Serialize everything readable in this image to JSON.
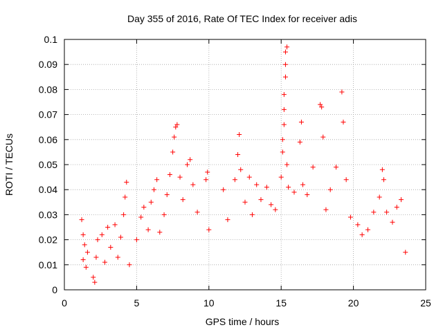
{
  "chart_data": {
    "type": "scatter",
    "title": "Day 355 of 2016, Rate Of TEC Index for receiver adis",
    "xlabel": "GPS time / hours",
    "ylabel": "ROTI / TECUs",
    "xlim": [
      0,
      25
    ],
    "ylim": [
      0,
      0.1
    ],
    "xticks": [
      "0",
      "5",
      "10",
      "15",
      "20",
      "25"
    ],
    "yticks": [
      "0",
      "0.01",
      "0.02",
      "0.03",
      "0.04",
      "0.05",
      "0.06",
      "0.07",
      "0.08",
      "0.09",
      "0.1"
    ],
    "grid": true,
    "marker": "plus",
    "color": "#ff0000",
    "points": [
      [
        1.2,
        0.028
      ],
      [
        1.3,
        0.022
      ],
      [
        1.3,
        0.012
      ],
      [
        1.4,
        0.018
      ],
      [
        1.5,
        0.009
      ],
      [
        1.6,
        0.015
      ],
      [
        2.0,
        0.005
      ],
      [
        2.1,
        0.003
      ],
      [
        2.2,
        0.013
      ],
      [
        2.3,
        0.02
      ],
      [
        2.6,
        0.022
      ],
      [
        2.8,
        0.011
      ],
      [
        3.0,
        0.025
      ],
      [
        3.2,
        0.017
      ],
      [
        3.5,
        0.026
      ],
      [
        3.7,
        0.013
      ],
      [
        3.9,
        0.021
      ],
      [
        4.1,
        0.03
      ],
      [
        4.2,
        0.037
      ],
      [
        4.3,
        0.043
      ],
      [
        4.5,
        0.01
      ],
      [
        5.0,
        0.02
      ],
      [
        5.3,
        0.029
      ],
      [
        5.5,
        0.033
      ],
      [
        5.8,
        0.024
      ],
      [
        6.0,
        0.035
      ],
      [
        6.2,
        0.04
      ],
      [
        6.4,
        0.044
      ],
      [
        6.6,
        0.023
      ],
      [
        6.9,
        0.03
      ],
      [
        7.1,
        0.038
      ],
      [
        7.3,
        0.046
      ],
      [
        7.5,
        0.055
      ],
      [
        7.6,
        0.061
      ],
      [
        7.7,
        0.065
      ],
      [
        7.8,
        0.066
      ],
      [
        8.0,
        0.045
      ],
      [
        8.2,
        0.036
      ],
      [
        8.5,
        0.05
      ],
      [
        8.7,
        0.052
      ],
      [
        8.9,
        0.042
      ],
      [
        9.2,
        0.031
      ],
      [
        9.8,
        0.044
      ],
      [
        9.9,
        0.047
      ],
      [
        10.0,
        0.024
      ],
      [
        11.0,
        0.04
      ],
      [
        11.3,
        0.028
      ],
      [
        11.8,
        0.044
      ],
      [
        12.0,
        0.054
      ],
      [
        12.1,
        0.062
      ],
      [
        12.2,
        0.048
      ],
      [
        12.5,
        0.035
      ],
      [
        12.8,
        0.045
      ],
      [
        13.0,
        0.03
      ],
      [
        13.3,
        0.042
      ],
      [
        13.6,
        0.036
      ],
      [
        14.0,
        0.041
      ],
      [
        14.3,
        0.034
      ],
      [
        14.6,
        0.032
      ],
      [
        15.0,
        0.045
      ],
      [
        15.1,
        0.055
      ],
      [
        15.1,
        0.06
      ],
      [
        15.2,
        0.066
      ],
      [
        15.2,
        0.072
      ],
      [
        15.2,
        0.078
      ],
      [
        15.3,
        0.085
      ],
      [
        15.3,
        0.09
      ],
      [
        15.3,
        0.095
      ],
      [
        15.4,
        0.097
      ],
      [
        15.4,
        0.05
      ],
      [
        15.5,
        0.041
      ],
      [
        15.9,
        0.039
      ],
      [
        16.3,
        0.059
      ],
      [
        16.4,
        0.067
      ],
      [
        16.5,
        0.042
      ],
      [
        16.8,
        0.038
      ],
      [
        17.2,
        0.049
      ],
      [
        17.7,
        0.074
      ],
      [
        17.8,
        0.073
      ],
      [
        17.9,
        0.061
      ],
      [
        18.1,
        0.032
      ],
      [
        18.4,
        0.04
      ],
      [
        18.8,
        0.049
      ],
      [
        19.2,
        0.079
      ],
      [
        19.3,
        0.067
      ],
      [
        19.5,
        0.044
      ],
      [
        19.8,
        0.029
      ],
      [
        20.3,
        0.026
      ],
      [
        20.6,
        0.022
      ],
      [
        21.0,
        0.024
      ],
      [
        21.4,
        0.031
      ],
      [
        21.8,
        0.037
      ],
      [
        22.0,
        0.048
      ],
      [
        22.1,
        0.044
      ],
      [
        22.3,
        0.031
      ],
      [
        22.7,
        0.027
      ],
      [
        23.0,
        0.033
      ],
      [
        23.3,
        0.036
      ],
      [
        23.6,
        0.015
      ]
    ]
  }
}
